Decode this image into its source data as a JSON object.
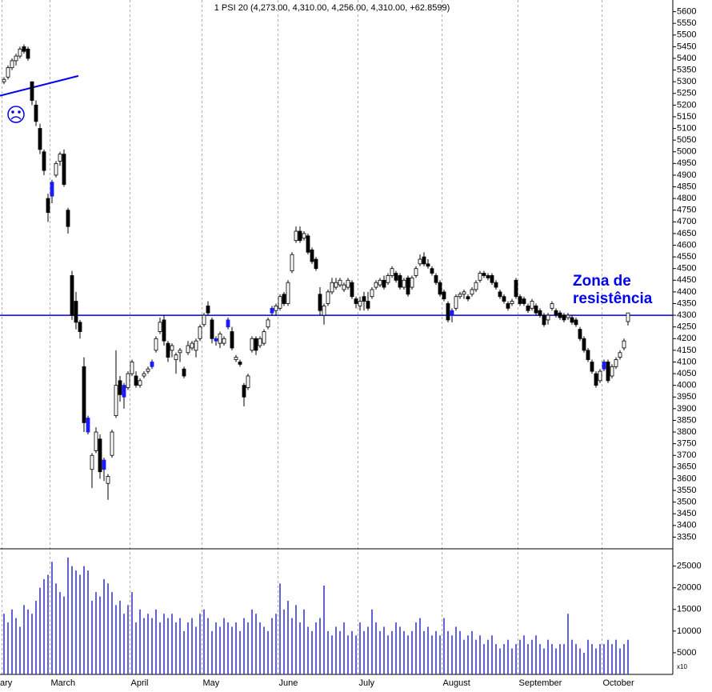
{
  "chart_data": {
    "type": "candlestick",
    "title": "1 PSI 20 (4,273.00, 4,310.00, 4,256.00, 4,310.00, +62.8599)",
    "categories": [
      "ary",
      null,
      null,
      null,
      null,
      null,
      null,
      null,
      null,
      null,
      null,
      null,
      "March",
      null,
      null,
      null,
      null,
      null,
      null,
      null,
      null,
      null,
      null,
      null,
      null,
      null,
      null,
      null,
      null,
      null,
      null,
      null,
      "April",
      null,
      null,
      null,
      null,
      null,
      null,
      null,
      null,
      null,
      null,
      null,
      null,
      null,
      null,
      null,
      null,
      null,
      "May",
      null,
      null,
      null,
      null,
      null,
      null,
      null,
      null,
      null,
      null,
      null,
      null,
      null,
      null,
      null,
      null,
      null,
      null,
      "June",
      null,
      null,
      null,
      null,
      null,
      null,
      null,
      null,
      null,
      null,
      null,
      null,
      null,
      null,
      null,
      null,
      null,
      null,
      null,
      "July",
      null,
      null,
      null,
      null,
      null,
      null,
      null,
      null,
      null,
      null,
      null,
      null,
      null,
      null,
      null,
      null,
      null,
      null,
      null,
      null,
      "August",
      null,
      null,
      null,
      null,
      null,
      null,
      null,
      null,
      null,
      null,
      null,
      null,
      null,
      null,
      null,
      null,
      null,
      null,
      "September",
      null,
      null,
      null,
      null,
      null,
      null,
      null,
      null,
      null,
      null,
      null,
      null,
      null,
      null,
      null,
      null,
      null,
      null,
      null,
      null,
      "October",
      null,
      null,
      null,
      null,
      null,
      null
    ],
    "ohlc": [
      [
        5300,
        5320,
        5290,
        5310
      ],
      [
        5320,
        5370,
        5310,
        5360
      ],
      [
        5360,
        5400,
        5350,
        5390
      ],
      [
        5390,
        5420,
        5370,
        5410
      ],
      [
        5410,
        5450,
        5400,
        5440
      ],
      [
        5450,
        5460,
        5420,
        5430
      ],
      [
        5440,
        5450,
        5390,
        5400
      ],
      [
        5300,
        5300,
        5200,
        5220
      ],
      [
        5200,
        5220,
        5110,
        5130
      ],
      [
        5100,
        5120,
        4990,
        5010
      ],
      [
        5000,
        5010,
        4900,
        4920
      ],
      [
        4800,
        4820,
        4700,
        4740
      ],
      [
        4810,
        4880,
        4780,
        4870
      ],
      [
        4900,
        4960,
        4890,
        4950
      ],
      [
        4960,
        5000,
        4940,
        4990
      ],
      [
        4990,
        5010,
        4850,
        4860
      ],
      [
        4750,
        4760,
        4650,
        4680
      ],
      [
        4470,
        4490,
        4280,
        4300
      ],
      [
        4360,
        4400,
        4240,
        4270
      ],
      [
        4270,
        4280,
        4200,
        4230
      ],
      [
        4080,
        4120,
        3800,
        3840
      ],
      [
        3800,
        3870,
        3790,
        3860
      ],
      [
        3640,
        3710,
        3560,
        3700
      ],
      [
        3720,
        3820,
        3710,
        3800
      ],
      [
        3770,
        3790,
        3600,
        3630
      ],
      [
        3640,
        3690,
        3590,
        3680
      ],
      [
        3580,
        3620,
        3510,
        3610
      ],
      [
        3700,
        3810,
        3690,
        3800
      ],
      [
        3870,
        4150,
        3860,
        4000
      ],
      [
        4020,
        4040,
        3930,
        3960
      ],
      [
        3950,
        4010,
        3900,
        4000
      ],
      [
        3990,
        4060,
        3980,
        4050
      ],
      [
        4050,
        4110,
        4040,
        4100
      ],
      [
        4040,
        4060,
        3990,
        4000
      ],
      [
        4000,
        4030,
        3990,
        4020
      ],
      [
        4040,
        4060,
        4030,
        4050
      ],
      [
        4060,
        4080,
        4050,
        4070
      ],
      [
        4080,
        4110,
        4070,
        4100
      ],
      [
        4150,
        4210,
        4140,
        4200
      ],
      [
        4230,
        4290,
        4220,
        4270
      ],
      [
        4280,
        4300,
        4170,
        4190
      ],
      [
        4180,
        4190,
        4100,
        4120
      ],
      [
        4150,
        4180,
        4120,
        4170
      ],
      [
        4110,
        4140,
        4050,
        4130
      ],
      [
        4140,
        4160,
        4100,
        4150
      ],
      [
        4070,
        4080,
        4030,
        4040
      ],
      [
        4140,
        4190,
        4130,
        4170
      ],
      [
        4160,
        4190,
        4150,
        4180
      ],
      [
        4150,
        4200,
        4120,
        4190
      ],
      [
        4200,
        4260,
        4190,
        4250
      ],
      [
        4260,
        4310,
        4250,
        4300
      ],
      [
        4340,
        4360,
        4300,
        4310
      ],
      [
        4280,
        4290,
        4180,
        4200
      ],
      [
        4190,
        4210,
        4170,
        4200
      ],
      [
        4180,
        4230,
        4160,
        4220
      ],
      [
        4180,
        4210,
        4170,
        4200
      ],
      [
        4250,
        4290,
        4240,
        4280
      ],
      [
        4230,
        4250,
        4150,
        4160
      ],
      [
        4110,
        4130,
        4100,
        4120
      ],
      [
        4100,
        4110,
        4080,
        4090
      ],
      [
        4000,
        4010,
        3910,
        3950
      ],
      [
        3990,
        4050,
        3980,
        4040
      ],
      [
        4150,
        4210,
        4140,
        4200
      ],
      [
        4200,
        4210,
        4130,
        4150
      ],
      [
        4170,
        4210,
        4160,
        4200
      ],
      [
        4180,
        4240,
        4170,
        4230
      ],
      [
        4250,
        4290,
        4240,
        4280
      ],
      [
        4310,
        4340,
        4300,
        4330
      ],
      [
        4320,
        4350,
        4300,
        4340
      ],
      [
        4330,
        4390,
        4320,
        4380
      ],
      [
        4390,
        4400,
        4340,
        4350
      ],
      [
        4350,
        4450,
        4340,
        4440
      ],
      [
        4490,
        4570,
        4480,
        4560
      ],
      [
        4620,
        4680,
        4610,
        4660
      ],
      [
        4660,
        4680,
        4610,
        4620
      ],
      [
        4630,
        4660,
        4620,
        4650
      ],
      [
        4640,
        4650,
        4560,
        4570
      ],
      [
        4580,
        4590,
        4520,
        4530
      ],
      [
        4540,
        4550,
        4490,
        4500
      ],
      [
        4390,
        4420,
        4300,
        4320
      ],
      [
        4300,
        4350,
        4260,
        4340
      ],
      [
        4350,
        4410,
        4340,
        4400
      ],
      [
        4400,
        4460,
        4390,
        4440
      ],
      [
        4420,
        4460,
        4410,
        4440
      ],
      [
        4430,
        4460,
        4420,
        4450
      ],
      [
        4410,
        4440,
        4400,
        4430
      ],
      [
        4420,
        4460,
        4410,
        4450
      ],
      [
        4440,
        4450,
        4370,
        4380
      ],
      [
        4370,
        4380,
        4330,
        4350
      ],
      [
        4340,
        4380,
        4320,
        4360
      ],
      [
        4380,
        4400,
        4320,
        4360
      ],
      [
        4360,
        4400,
        4320,
        4330
      ],
      [
        4380,
        4420,
        4370,
        4410
      ],
      [
        4420,
        4450,
        4410,
        4440
      ],
      [
        4430,
        4460,
        4420,
        4450
      ],
      [
        4450,
        4470,
        4410,
        4420
      ],
      [
        4440,
        4480,
        4430,
        4470
      ],
      [
        4470,
        4510,
        4460,
        4500
      ],
      [
        4480,
        4490,
        4440,
        4450
      ],
      [
        4470,
        4480,
        4410,
        4420
      ],
      [
        4420,
        4460,
        4410,
        4450
      ],
      [
        4460,
        4470,
        4380,
        4390
      ],
      [
        4420,
        4470,
        4410,
        4460
      ],
      [
        4470,
        4510,
        4460,
        4500
      ],
      [
        4520,
        4560,
        4510,
        4540
      ],
      [
        4550,
        4570,
        4510,
        4520
      ],
      [
        4520,
        4540,
        4500,
        4510
      ],
      [
        4500,
        4510,
        4470,
        4480
      ],
      [
        4470,
        4480,
        4430,
        4440
      ],
      [
        4440,
        4450,
        4380,
        4390
      ],
      [
        4400,
        4410,
        4360,
        4370
      ],
      [
        4350,
        4360,
        4270,
        4280
      ],
      [
        4300,
        4330,
        4270,
        4320
      ],
      [
        4330,
        4390,
        4320,
        4380
      ],
      [
        4380,
        4400,
        4370,
        4390
      ],
      [
        4390,
        4410,
        4370,
        4400
      ],
      [
        4380,
        4390,
        4360,
        4370
      ],
      [
        4390,
        4420,
        4380,
        4410
      ],
      [
        4410,
        4450,
        4400,
        4440
      ],
      [
        4450,
        4490,
        4440,
        4480
      ],
      [
        4480,
        4490,
        4460,
        4470
      ],
      [
        4470,
        4480,
        4450,
        4460
      ],
      [
        4470,
        4480,
        4430,
        4440
      ],
      [
        4440,
        4450,
        4410,
        4420
      ],
      [
        4400,
        4410,
        4370,
        4380
      ],
      [
        4380,
        4390,
        4350,
        4360
      ],
      [
        4350,
        4360,
        4320,
        4330
      ],
      [
        4350,
        4370,
        4340,
        4360
      ],
      [
        4450,
        4460,
        4370,
        4380
      ],
      [
        4380,
        4390,
        4340,
        4350
      ],
      [
        4370,
        4380,
        4340,
        4350
      ],
      [
        4340,
        4350,
        4310,
        4320
      ],
      [
        4330,
        4370,
        4320,
        4360
      ],
      [
        4340,
        4350,
        4300,
        4310
      ],
      [
        4320,
        4330,
        4290,
        4300
      ],
      [
        4300,
        4310,
        4250,
        4260
      ],
      [
        4280,
        4310,
        4260,
        4300
      ],
      [
        4330,
        4360,
        4320,
        4350
      ],
      [
        4320,
        4330,
        4290,
        4300
      ],
      [
        4310,
        4320,
        4280,
        4290
      ],
      [
        4300,
        4310,
        4270,
        4280
      ],
      [
        4290,
        4310,
        4280,
        4300
      ],
      [
        4290,
        4300,
        4260,
        4270
      ],
      [
        4280,
        4290,
        4250,
        4260
      ],
      [
        4240,
        4250,
        4190,
        4200
      ],
      [
        4200,
        4210,
        4140,
        4150
      ],
      [
        4150,
        4160,
        4100,
        4110
      ],
      [
        4100,
        4110,
        4050,
        4060
      ],
      [
        4050,
        4060,
        3990,
        4000
      ],
      [
        4020,
        4070,
        4010,
        4060
      ],
      [
        4070,
        4110,
        4060,
        4100
      ],
      [
        4100,
        4110,
        4010,
        4020
      ],
      [
        4040,
        4090,
        4030,
        4080
      ],
      [
        4080,
        4120,
        4070,
        4110
      ],
      [
        4120,
        4150,
        4110,
        4140
      ],
      [
        4160,
        4200,
        4150,
        4190
      ],
      [
        4273,
        4310,
        4256,
        4310
      ]
    ],
    "volume": [
      14000,
      12000,
      15000,
      13000,
      11000,
      16000,
      15000,
      14000,
      17000,
      20000,
      22000,
      23000,
      26000,
      21000,
      19000,
      18000,
      27000,
      25000,
      24000,
      23000,
      25000,
      24000,
      17000,
      19000,
      18000,
      22000,
      21000,
      19000,
      16000,
      17000,
      14000,
      16000,
      19000,
      12000,
      15000,
      13000,
      14000,
      13000,
      15000,
      12000,
      14000,
      13000,
      14000,
      12000,
      13000,
      10000,
      12000,
      13000,
      11000,
      14000,
      15000,
      13000,
      10000,
      12000,
      11000,
      13000,
      12000,
      11000,
      12000,
      10000,
      13000,
      12000,
      15000,
      14000,
      12000,
      11000,
      10000,
      13000,
      14000,
      21000,
      15000,
      17000,
      13000,
      16000,
      12000,
      15000,
      11000,
      10000,
      12000,
      13000,
      20500,
      10000,
      9000,
      11000,
      10000,
      12000,
      9000,
      10000,
      9000,
      12000,
      10000,
      11000,
      15000,
      12000,
      10000,
      11000,
      9000,
      10000,
      12000,
      11000,
      10000,
      9000,
      10000,
      12000,
      13000,
      10000,
      11000,
      9000,
      10000,
      9000,
      13000,
      10000,
      9000,
      11000,
      10000,
      8000,
      9000,
      10000,
      8000,
      9000,
      7000,
      8000,
      9000,
      7000,
      6000,
      7000,
      8000,
      6000,
      7000,
      8000,
      9000,
      7000,
      8000,
      9000,
      7000,
      6000,
      8000,
      7000,
      6000,
      7000,
      7000,
      14000,
      8000,
      7000,
      6000,
      5000,
      8000,
      7000,
      6000,
      7000,
      7000,
      8000,
      7000,
      8000,
      6000,
      7000,
      8000
    ],
    "up_color": "#ffffff",
    "down_color": "#000000",
    "highlight": {
      "color": "#1a1aff",
      "candles": [
        12,
        21,
        25,
        30,
        37,
        53,
        56,
        67,
        112,
        150
      ]
    },
    "volume_color": "#2d2dc8",
    "ylim": [
      3300,
      5650
    ],
    "yticks": [
      3350,
      3400,
      3450,
      3500,
      3550,
      3600,
      3650,
      3700,
      3750,
      3800,
      3850,
      3900,
      3950,
      4000,
      4050,
      4100,
      4150,
      4200,
      4250,
      4300,
      4350,
      4400,
      4450,
      4500,
      4550,
      4600,
      4650,
      4700,
      4750,
      4800,
      4850,
      4900,
      4950,
      5000,
      5050,
      5100,
      5150,
      5200,
      5250,
      5300,
      5350,
      5400,
      5450,
      5500,
      5550,
      5600
    ],
    "y2lim": [
      0,
      29000
    ],
    "y2ticks": [
      5000,
      10000,
      15000,
      20000,
      25000
    ],
    "y2_multiplier_label": "x10",
    "resistance_level": 4300,
    "resistance_color": "#0000ee",
    "annotation": "Zona de resistência",
    "trendline": [
      [
        -1,
        5240
      ],
      [
        18.6,
        5325
      ]
    ],
    "grid": true
  }
}
